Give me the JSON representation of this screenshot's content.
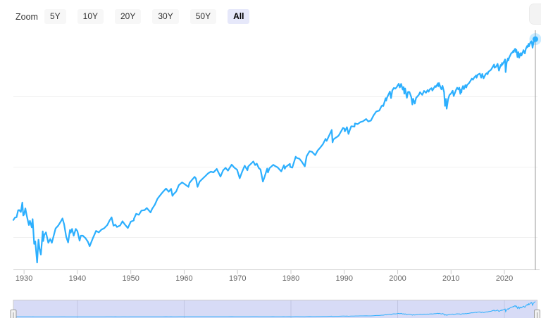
{
  "range_selector": {
    "zoom_label": "Zoom",
    "buttons": [
      {
        "label": "5Y",
        "selected": false
      },
      {
        "label": "10Y",
        "selected": false
      },
      {
        "label": "20Y",
        "selected": false
      },
      {
        "label": "30Y",
        "selected": false
      },
      {
        "label": "50Y",
        "selected": false
      },
      {
        "label": "All",
        "selected": true
      }
    ]
  },
  "colors": {
    "series_line": "#2caffe",
    "marker_fill": "#2caffe",
    "marker_halo": "rgba(44,175,254,0.25)",
    "axis_line": "#cccccc",
    "gridline": "#f0f0f0",
    "tick_label": "#666666",
    "crosshair": "#999999",
    "selected_button_bg": "#e6e8fa",
    "button_bg": "#f7f7f7",
    "navigator_mask": "#d7dbf6",
    "navigator_outline": "#cccccc",
    "navigator_gridline": "#c2c6e2",
    "handle_fill": "#f2f2f2",
    "handle_border": "#999999"
  },
  "chart_data": {
    "type": "line",
    "title": "",
    "xlabel": "",
    "ylabel": "",
    "y_scale": "log",
    "x_range": [
      1928,
      2025.8
    ],
    "y_gridline_values": [
      10,
      100,
      1000
    ],
    "x_ticks": [
      1930,
      1940,
      1950,
      1960,
      1970,
      1980,
      1990,
      2000,
      2010,
      2020
    ],
    "x_tick_labels": [
      "1930",
      "1940",
      "1950",
      "1960",
      "1970",
      "1980",
      "1990",
      "2000",
      "2010",
      "2020"
    ],
    "legend": "off",
    "grid": "horizontal",
    "last_point": {
      "year": 2025.8,
      "value": 6584
    },
    "points": [
      [
        1928.0,
        17.7
      ],
      [
        1928.3,
        19.2
      ],
      [
        1928.6,
        19.4
      ],
      [
        1928.9,
        24.4
      ],
      [
        1929.1,
        24.5
      ],
      [
        1929.4,
        23.0
      ],
      [
        1929.67,
        31.3
      ],
      [
        1929.85,
        20.5
      ],
      [
        1930.0,
        21.2
      ],
      [
        1930.25,
        25.9
      ],
      [
        1930.5,
        20.5
      ],
      [
        1930.9,
        15.0
      ],
      [
        1931.1,
        17.2
      ],
      [
        1931.45,
        13.9
      ],
      [
        1931.6,
        18.2
      ],
      [
        1931.9,
        8.1
      ],
      [
        1932.1,
        8.8
      ],
      [
        1932.45,
        4.4
      ],
      [
        1932.7,
        9.3
      ],
      [
        1932.9,
        6.9
      ],
      [
        1933.15,
        5.7
      ],
      [
        1933.5,
        12.2
      ],
      [
        1933.6,
        8.9
      ],
      [
        1933.8,
        10.9
      ],
      [
        1934.1,
        11.8
      ],
      [
        1934.55,
        8.4
      ],
      [
        1934.9,
        9.5
      ],
      [
        1935.2,
        8.4
      ],
      [
        1935.9,
        13.4
      ],
      [
        1936.4,
        14.7
      ],
      [
        1936.95,
        17.2
      ],
      [
        1937.2,
        18.6
      ],
      [
        1937.5,
        15.4
      ],
      [
        1937.9,
        10.2
      ],
      [
        1938.25,
        8.5
      ],
      [
        1938.6,
        12.8
      ],
      [
        1938.75,
        11.7
      ],
      [
        1939.0,
        13.2
      ],
      [
        1939.3,
        10.6
      ],
      [
        1939.7,
        13.2
      ],
      [
        1940.0,
        12.3
      ],
      [
        1940.4,
        9.0
      ],
      [
        1940.65,
        10.6
      ],
      [
        1941.0,
        10.6
      ],
      [
        1941.5,
        9.8
      ],
      [
        1941.95,
        8.7
      ],
      [
        1942.3,
        7.5
      ],
      [
        1942.9,
        9.8
      ],
      [
        1943.5,
        12.4
      ],
      [
        1944.0,
        11.8
      ],
      [
        1944.5,
        12.9
      ],
      [
        1945.0,
        13.5
      ],
      [
        1945.6,
        15.0
      ],
      [
        1946.0,
        17.3
      ],
      [
        1946.4,
        19.3
      ],
      [
        1946.75,
        14.7
      ],
      [
        1947.1,
        15.2
      ],
      [
        1947.4,
        14.1
      ],
      [
        1948.0,
        14.8
      ],
      [
        1948.45,
        17.0
      ],
      [
        1948.9,
        15.2
      ],
      [
        1949.45,
        13.6
      ],
      [
        1950.0,
        16.8
      ],
      [
        1950.55,
        17.4
      ],
      [
        1950.6,
        18.5
      ],
      [
        1951.0,
        21.7
      ],
      [
        1951.5,
        21.0
      ],
      [
        1952.0,
        24.1
      ],
      [
        1952.6,
        24.5
      ],
      [
        1953.0,
        26.2
      ],
      [
        1953.7,
        22.7
      ],
      [
        1954.0,
        25.5
      ],
      [
        1954.5,
        29.2
      ],
      [
        1955.0,
        35.6
      ],
      [
        1955.3,
        37.9
      ],
      [
        1955.8,
        42.4
      ],
      [
        1956.0,
        44.2
      ],
      [
        1956.6,
        49.6
      ],
      [
        1957.1,
        44.7
      ],
      [
        1957.55,
        49.1
      ],
      [
        1957.8,
        39.0
      ],
      [
        1958.0,
        41.1
      ],
      [
        1958.5,
        45.0
      ],
      [
        1959.0,
        55.4
      ],
      [
        1959.6,
        60.5
      ],
      [
        1960.0,
        58.0
      ],
      [
        1960.8,
        52.3
      ],
      [
        1961.0,
        59.7
      ],
      [
        1961.95,
        72.6
      ],
      [
        1962.2,
        69.0
      ],
      [
        1962.5,
        52.3
      ],
      [
        1962.9,
        62.3
      ],
      [
        1963.5,
        69.1
      ],
      [
        1964.0,
        75.0
      ],
      [
        1964.5,
        81.7
      ],
      [
        1965.0,
        86.1
      ],
      [
        1965.5,
        84.1
      ],
      [
        1966.1,
        94.1
      ],
      [
        1966.8,
        73.2
      ],
      [
        1967.3,
        90.2
      ],
      [
        1967.75,
        97.6
      ],
      [
        1968.2,
        89.1
      ],
      [
        1968.9,
        108.4
      ],
      [
        1969.4,
        97.9
      ],
      [
        1969.9,
        92.1
      ],
      [
        1970.4,
        69.3
      ],
      [
        1970.9,
        87.2
      ],
      [
        1971.35,
        104.8
      ],
      [
        1971.85,
        90.2
      ],
      [
        1972.0,
        102.1
      ],
      [
        1972.95,
        120.2
      ],
      [
        1973.3,
        107.0
      ],
      [
        1973.6,
        111.9
      ],
      [
        1974.0,
        96.6
      ],
      [
        1974.3,
        92.5
      ],
      [
        1974.75,
        62.3
      ],
      [
        1975.0,
        70.2
      ],
      [
        1975.55,
        95.2
      ],
      [
        1975.7,
        83.9
      ],
      [
        1976.0,
        96.9
      ],
      [
        1976.7,
        107.8
      ],
      [
        1977.0,
        103.8
      ],
      [
        1977.5,
        99.0
      ],
      [
        1978.2,
        86.9
      ],
      [
        1978.7,
        106.1
      ],
      [
        1978.85,
        94.6
      ],
      [
        1979.0,
        99.9
      ],
      [
        1979.8,
        111.3
      ],
      [
        1979.85,
        100.7
      ],
      [
        1980.25,
        98.2
      ],
      [
        1980.9,
        140.5
      ],
      [
        1981.0,
        135.8
      ],
      [
        1981.6,
        131.2
      ],
      [
        1982.0,
        120.4
      ],
      [
        1982.6,
        102.4
      ],
      [
        1982.95,
        143.0
      ],
      [
        1983.5,
        168.1
      ],
      [
        1983.95,
        164.9
      ],
      [
        1984.55,
        147.8
      ],
      [
        1985.0,
        171.6
      ],
      [
        1985.5,
        189.6
      ],
      [
        1986.0,
        211.8
      ],
      [
        1986.5,
        252.0
      ],
      [
        1986.7,
        236.1
      ],
      [
        1987.0,
        264.5
      ],
      [
        1987.65,
        336.8
      ],
      [
        1987.8,
        224.8
      ],
      [
        1987.95,
        247.1
      ],
      [
        1988.3,
        258.9
      ],
      [
        1988.75,
        271.9
      ],
      [
        1989.0,
        285.4
      ],
      [
        1989.75,
        359.8
      ],
      [
        1990.0,
        353.4
      ],
      [
        1990.1,
        322.0
      ],
      [
        1990.5,
        368.9
      ],
      [
        1990.78,
        295.5
      ],
      [
        1991.0,
        330.2
      ],
      [
        1991.3,
        380.0
      ],
      [
        1991.9,
        376.1
      ],
      [
        1992.0,
        417.1
      ],
      [
        1992.5,
        408.1
      ],
      [
        1993.0,
        435.7
      ],
      [
        1993.5,
        448.1
      ],
      [
        1994.1,
        482.0
      ],
      [
        1994.5,
        444.3
      ],
      [
        1995.0,
        459.3
      ],
      [
        1995.5,
        544.8
      ],
      [
        1996.0,
        615.9
      ],
      [
        1996.55,
        635.0
      ],
      [
        1997.0,
        740.7
      ],
      [
        1997.25,
        757.1
      ],
      [
        1997.3,
        737.7
      ],
      [
        1997.75,
        954.3
      ],
      [
        1997.85,
        876.0
      ],
      [
        1998.0,
        970.4
      ],
      [
        1998.55,
        1186.8
      ],
      [
        1998.75,
        957.3
      ],
      [
        1999.0,
        1229.2
      ],
      [
        1999.3,
        1335.2
      ],
      [
        1999.55,
        1301.8
      ],
      [
        1999.8,
        1362.9
      ],
      [
        2000.2,
        1527.5
      ],
      [
        2000.4,
        1356.6
      ],
      [
        2000.65,
        1520.8
      ],
      [
        2000.95,
        1264.7
      ],
      [
        2001.1,
        1373.7
      ],
      [
        2001.25,
        1103.3
      ],
      [
        2001.4,
        1312.8
      ],
      [
        2001.72,
        965.8
      ],
      [
        2001.95,
        1172.5
      ],
      [
        2002.2,
        1170.3
      ],
      [
        2002.55,
        989.8
      ],
      [
        2002.75,
        776.8
      ],
      [
        2002.9,
        936.3
      ],
      [
        2003.2,
        800.7
      ],
      [
        2003.45,
        963.6
      ],
      [
        2003.95,
        1058.2
      ],
      [
        2004.2,
        1157.8
      ],
      [
        2004.6,
        1063.2
      ],
      [
        2004.95,
        1211.9
      ],
      [
        2005.3,
        1137.5
      ],
      [
        2005.6,
        1245.0
      ],
      [
        2005.8,
        1176.8
      ],
      [
        2006.0,
        1268.8
      ],
      [
        2006.35,
        1325.8
      ],
      [
        2006.5,
        1223.7
      ],
      [
        2007.0,
        1418.3
      ],
      [
        2007.15,
        1374.1
      ],
      [
        2007.55,
        1553.1
      ],
      [
        2007.62,
        1406.7
      ],
      [
        2007.75,
        1565.2
      ],
      [
        2008.0,
        1378.6
      ],
      [
        2008.2,
        1273.4
      ],
      [
        2008.4,
        1426.6
      ],
      [
        2008.7,
        1166.4
      ],
      [
        2008.87,
        741.0
      ],
      [
        2008.95,
        903.3
      ],
      [
        2009.05,
        931.8
      ],
      [
        2009.18,
        676.5
      ],
      [
        2009.45,
        919.1
      ],
      [
        2009.7,
        1057.1
      ],
      [
        2010.0,
        1115.1
      ],
      [
        2010.3,
        1217.3
      ],
      [
        2010.5,
        1022.6
      ],
      [
        2010.95,
        1257.6
      ],
      [
        2011.15,
        1343.0
      ],
      [
        2011.35,
        1270.0
      ],
      [
        2011.55,
        1345.0
      ],
      [
        2011.75,
        1099.2
      ],
      [
        2011.85,
        1253.3
      ],
      [
        2011.95,
        1158.7
      ],
      [
        2012.0,
        1257.6
      ],
      [
        2012.25,
        1419.0
      ],
      [
        2012.4,
        1278.0
      ],
      [
        2012.7,
        1465.8
      ],
      [
        2012.85,
        1353.3
      ],
      [
        2013.0,
        1462.4
      ],
      [
        2013.4,
        1569.2
      ],
      [
        2013.9,
        1805.8
      ],
      [
        2014.1,
        1741.9
      ],
      [
        2014.35,
        1878.0
      ],
      [
        2014.7,
        2011.4
      ],
      [
        2014.78,
        1862.5
      ],
      [
        2015.0,
        2058.9
      ],
      [
        2015.4,
        2130.8
      ],
      [
        2015.65,
        1867.6
      ],
      [
        2015.85,
        2109.8
      ],
      [
        2016.1,
        1829.1
      ],
      [
        2016.5,
        2099.0
      ],
      [
        2016.7,
        2168.3
      ],
      [
        2016.85,
        2085.2
      ],
      [
        2017.0,
        2262.0
      ],
      [
        2017.5,
        2423.4
      ],
      [
        2018.07,
        2872.9
      ],
      [
        2018.15,
        2581.0
      ],
      [
        2018.4,
        2648.1
      ],
      [
        2018.73,
        2930.8
      ],
      [
        2018.98,
        2351.1
      ],
      [
        2019.3,
        2834.4
      ],
      [
        2019.42,
        2752.1
      ],
      [
        2019.55,
        3013.8
      ],
      [
        2019.6,
        2847.1
      ],
      [
        2020.0,
        3230.8
      ],
      [
        2020.13,
        3386.2
      ],
      [
        2020.23,
        2237.4
      ],
      [
        2020.42,
        3044.3
      ],
      [
        2020.65,
        3500.3
      ],
      [
        2020.73,
        3269.9
      ],
      [
        2020.9,
        3621.6
      ],
      [
        2021.3,
        4181.2
      ],
      [
        2021.45,
        4204.1
      ],
      [
        2021.7,
        4522.7
      ],
      [
        2021.75,
        4307.5
      ],
      [
        2021.95,
        4766.2
      ],
      [
        2022.04,
        4796.6
      ],
      [
        2022.15,
        4328.9
      ],
      [
        2022.25,
        4631.6
      ],
      [
        2022.45,
        3666.8
      ],
      [
        2022.6,
        4305.2
      ],
      [
        2022.78,
        3577.0
      ],
      [
        2022.9,
        4080.1
      ],
      [
        2023.0,
        3839.5
      ],
      [
        2023.1,
        4179.8
      ],
      [
        2023.2,
        3855.8
      ],
      [
        2023.58,
        4588.9
      ],
      [
        2023.83,
        4117.4
      ],
      [
        2024.0,
        4769.8
      ],
      [
        2024.25,
        5254.4
      ],
      [
        2024.3,
        5035.7
      ],
      [
        2024.55,
        5648.0
      ],
      [
        2024.6,
        5186.3
      ],
      [
        2024.9,
        6032.4
      ],
      [
        2025.0,
        5881.6
      ],
      [
        2025.12,
        6144.2
      ],
      [
        2025.27,
        4982.8
      ],
      [
        2025.45,
        5911.7
      ],
      [
        2025.6,
        6204.9
      ],
      [
        2025.75,
        6460.3
      ],
      [
        2025.8,
        6584.0
      ]
    ],
    "navigator": {
      "gridline_years": [
        1940,
        1960,
        1980,
        2000,
        2020
      ],
      "selected_range": "all",
      "y_range_linear": [
        0,
        6600
      ]
    }
  }
}
